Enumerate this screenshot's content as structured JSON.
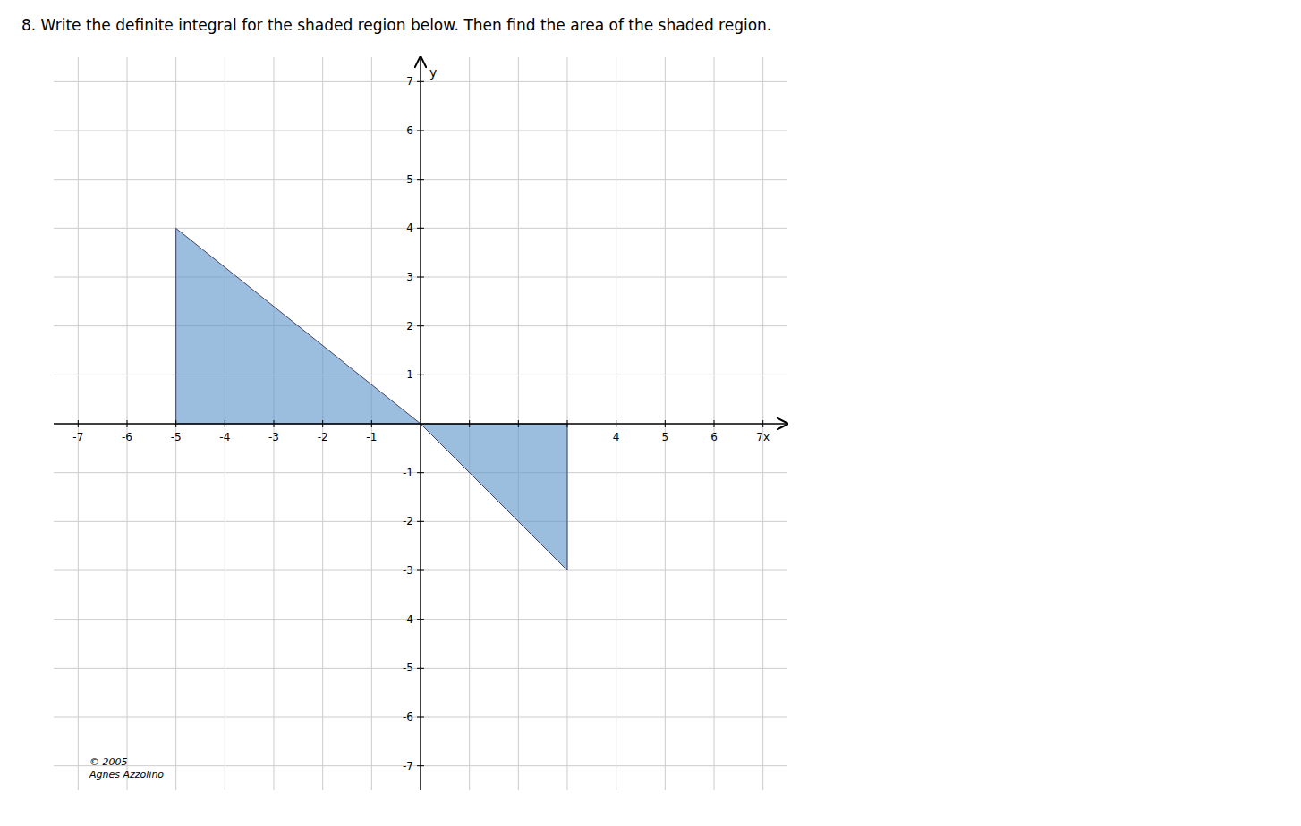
{
  "chart_data": {
    "type": "polygon",
    "title": "8.  Write the definite integral for the shaded region below.  Then find the area of the shaded region.",
    "ylabel": "y",
    "annotations": [
      "© 2005\nAgnes Azzolino"
    ],
    "series": [
      {
        "color": "#6699cc",
        "x": [
          -5,
          -5,
          0
        ],
        "y": [
          0,
          4,
          0
        ]
      },
      {
        "color": "#6699cc",
        "x": [
          0,
          3,
          3
        ],
        "y": [
          0,
          0,
          -3
        ]
      }
    ],
    "xlim": [
      -7.5,
      7.5
    ],
    "ylim": [
      -7.5,
      7.5
    ],
    "xticks": [
      -7,
      -6,
      -5,
      -4,
      -3,
      -2,
      -1,
      {
        "value": 1,
        "label": null
      },
      {
        "value": 2,
        "label": null
      },
      {
        "value": 3,
        "label": null
      },
      4,
      5,
      6,
      {
        "value": 7,
        "label": "7x"
      }
    ],
    "yticks": [
      -7,
      -6,
      -5,
      -4,
      -3,
      -2,
      -1,
      1,
      2,
      3,
      4,
      5,
      6,
      7
    ],
    "grid": true
  }
}
